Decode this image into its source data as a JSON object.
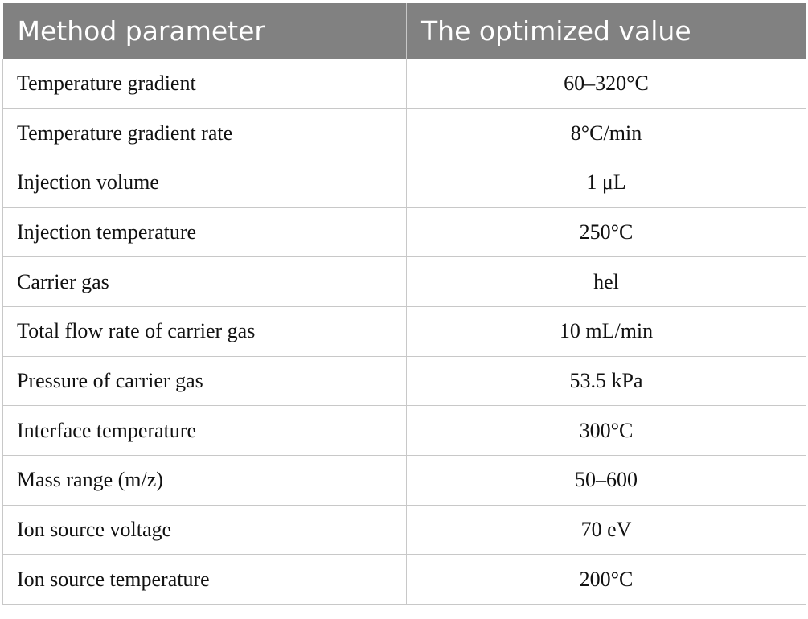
{
  "table": {
    "header": [
      "Method parameter",
      "The optimized value"
    ],
    "rows": [
      [
        "Temperature gradient",
        "60–320°C"
      ],
      [
        "Temperature gradient rate",
        "8°C/min"
      ],
      [
        "Injection volume",
        "1 μL"
      ],
      [
        "Injection temperature",
        "250°C"
      ],
      [
        "Carrier gas",
        "hel"
      ],
      [
        "Total flow rate of carrier gas",
        "10 mL/min"
      ],
      [
        "Pressure of carrier gas",
        "53.5 kPa"
      ],
      [
        "Interface temperature",
        "300°C"
      ],
      [
        "Mass range (m/z)",
        "50–600"
      ],
      [
        "Ion source voltage",
        "70 eV"
      ],
      [
        "Ion source temperature",
        "200°C"
      ]
    ]
  }
}
